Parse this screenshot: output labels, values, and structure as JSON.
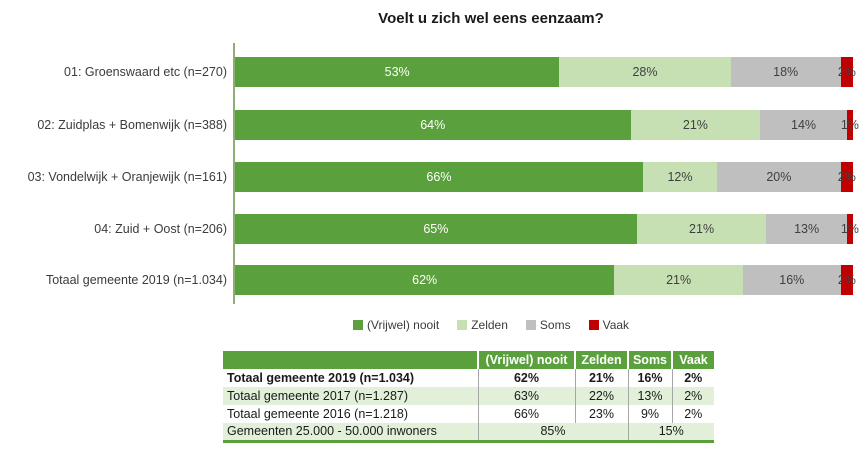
{
  "chart_data": {
    "type": "bar",
    "orientation": "horizontal",
    "stacked": true,
    "title": "Voelt u zich wel eens eenzaam?",
    "value_suffix": "%",
    "legend_position": "bottom",
    "grid": false,
    "xlim": [
      0,
      100
    ],
    "categories": [
      "01: Groenswaard etc (n=270)",
      "02: Zuidplas + Bomenwijk (n=388)",
      "03: Vondelwijk + Oranjewijk (n=161)",
      "04: Zuid + Oost (n=206)",
      "Totaal gemeente 2019 (n=1.034)"
    ],
    "series": [
      {
        "name": "(Vrijwel) nooit",
        "color": "#5aa03c",
        "label_color": "#ffffff",
        "values": [
          53,
          64,
          66,
          65,
          62
        ]
      },
      {
        "name": "Zelden",
        "color": "#c6e0b4",
        "label_color": "#404040",
        "values": [
          28,
          21,
          12,
          21,
          21
        ]
      },
      {
        "name": "Soms",
        "color": "#bfbfbf",
        "label_color": "#404040",
        "values": [
          18,
          14,
          20,
          13,
          16
        ]
      },
      {
        "name": "Vaak",
        "color": "#c00000",
        "label_color": "#404040",
        "values": [
          2,
          1,
          2,
          1,
          2
        ]
      }
    ]
  },
  "table": {
    "headers": [
      "",
      "(Vrijwel) nooit",
      "Zelden",
      "Soms",
      "Vaak"
    ],
    "rows": [
      {
        "label": "Totaal gemeente 2019 (n=1.034)",
        "bold": true,
        "background": "#ffffff",
        "cells": [
          {
            "text": "62%"
          },
          {
            "text": "21%"
          },
          {
            "text": "16%"
          },
          {
            "text": "2%"
          }
        ]
      },
      {
        "label": "Totaal gemeente 2017 (n=1.287)",
        "bold": false,
        "background": "#e2efd9",
        "cells": [
          {
            "text": "63%"
          },
          {
            "text": "22%"
          },
          {
            "text": "13%"
          },
          {
            "text": "2%"
          }
        ]
      },
      {
        "label": "Totaal gemeente 2016 (n=1.218)",
        "bold": false,
        "background": "#ffffff",
        "cells": [
          {
            "text": "66%"
          },
          {
            "text": "23%"
          },
          {
            "text": "9%"
          },
          {
            "text": "2%"
          }
        ]
      },
      {
        "label": "Gemeenten 25.000 - 50.000 inwoners",
        "bold": false,
        "background": "#e2efd9",
        "cells": [
          {
            "text": "85%",
            "colspan": 2
          },
          {
            "text": "15%",
            "colspan": 2
          }
        ]
      }
    ]
  },
  "colors": {
    "axis_line": "#8fae76",
    "table_header_bg": "#5aa03c",
    "table_header_text": "#ffffff",
    "table_alt_row_bg": "#e2efd9",
    "table_border": "#5aa03c",
    "table_divider": "#a6a6a6"
  }
}
